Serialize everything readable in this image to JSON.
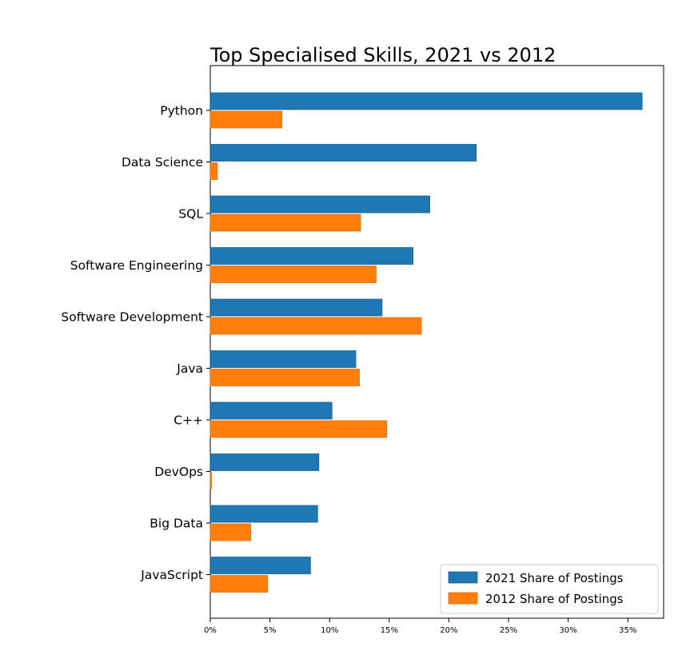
{
  "chart_data": {
    "type": "bar",
    "orientation": "horizontal",
    "title": "Top Specialised Skills, 2021 vs 2012",
    "xlabel": "",
    "ylabel": "",
    "categories": [
      "Python",
      "Data Science",
      "SQL",
      "Software Engineering",
      "Software Development",
      "Java",
      "C++",
      "DevOps",
      "Big Data",
      "JavaScript"
    ],
    "series": [
      {
        "name": "2021 Share of Postings",
        "color": "#1f77b4",
        "values": [
          36.2,
          22.3,
          18.4,
          17.0,
          14.4,
          12.2,
          10.2,
          9.1,
          9.0,
          8.4
        ]
      },
      {
        "name": "2012 Share of Postings",
        "color": "#ff7f0e",
        "values": [
          6.0,
          0.6,
          12.6,
          13.9,
          17.7,
          12.5,
          14.8,
          0.1,
          3.4,
          4.8
        ]
      }
    ],
    "xlim": [
      0,
      38
    ],
    "xticks": [
      0,
      5,
      10,
      15,
      20,
      25,
      30,
      35
    ],
    "xtick_labels": [
      "0%",
      "5%",
      "10%",
      "15%",
      "20%",
      "25%",
      "30%",
      "35%"
    ],
    "grid": false,
    "legend": "bottom-right"
  }
}
